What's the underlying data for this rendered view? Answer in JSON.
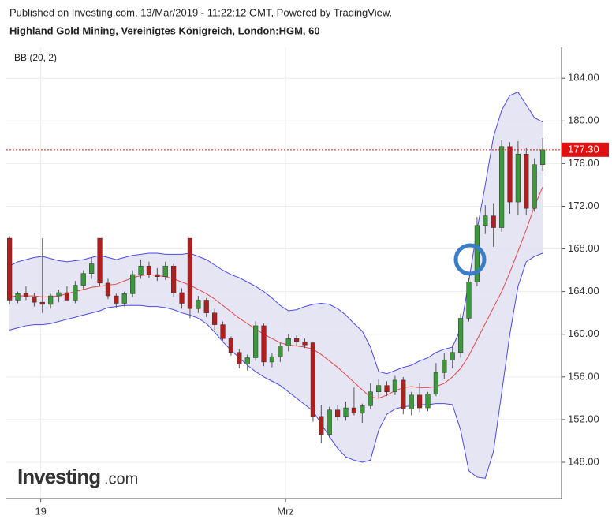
{
  "chart_data": {
    "type": "candlestick",
    "header": "Published on Investing.com, 13/Mar/2019 - 11:22:12 GMT, Powered by TradingView.",
    "title": "Highland Gold Mining, Vereinigtes Königreich, London:HGM, 60",
    "indicator_label": "BB (20, 2)",
    "logo": "Investing",
    "logo_suffix": ".com",
    "categories": [
      null,
      null,
      null,
      null,
      null,
      null,
      null,
      null,
      null,
      null,
      null,
      null,
      null,
      null,
      null,
      null,
      null,
      null,
      null,
      null,
      null,
      null,
      null,
      null,
      null,
      null,
      null,
      null,
      null,
      null,
      null,
      null,
      null,
      null,
      null,
      null,
      null,
      null,
      null,
      null,
      null,
      null,
      null,
      null,
      null,
      null,
      null,
      null,
      null,
      null,
      null,
      null,
      null,
      null,
      null,
      null,
      null,
      null,
      null,
      null,
      null,
      null,
      null,
      null,
      null,
      null
    ],
    "open": [
      169,
      163.2,
      163.8,
      163.5,
      163,
      162.8,
      163.6,
      163.9,
      163.2,
      164.6,
      165.7,
      169,
      164.8,
      163.6,
      162.9,
      163.8,
      165.6,
      166.4,
      165.6,
      165.4,
      166.4,
      163.9,
      169,
      162.4,
      163.2,
      162,
      160.9,
      159.6,
      158.3,
      157.2,
      157.8,
      160.8,
      157.4,
      157.9,
      158.9,
      159.6,
      159.3,
      159.2,
      152.3,
      150.6,
      152.9,
      152.3,
      153.1,
      152.6,
      153.3,
      154.6,
      155.2,
      154.6,
      155.7,
      153,
      154.3,
      153.1,
      154.4,
      156.4,
      157.6,
      158.3,
      161.5,
      164.9,
      170.2,
      171.1,
      170,
      177.6,
      172.4,
      176.9,
      171.8,
      175.9
    ],
    "high": [
      169.2,
      164,
      164.5,
      163.9,
      169,
      163.8,
      164.2,
      164.5,
      165,
      166,
      167.2,
      169,
      165.2,
      163.8,
      164,
      166,
      167,
      166.8,
      166.2,
      166.8,
      166.6,
      164.3,
      169,
      163.6,
      163.4,
      162.4,
      161.2,
      159.8,
      158.6,
      158.1,
      161.2,
      161,
      158.2,
      159.2,
      160,
      159.9,
      159.6,
      159.3,
      153.4,
      153.2,
      153.4,
      153.7,
      155,
      153.5,
      155.4,
      155.8,
      155.6,
      156.1,
      156,
      154.6,
      155.4,
      154.6,
      157.3,
      158.2,
      159,
      161.9,
      165.3,
      171,
      172.1,
      172.3,
      178.2,
      178,
      178.1,
      177.5,
      176.5,
      178.4
    ],
    "low": [
      162.8,
      162.9,
      163.2,
      162.6,
      162,
      162.4,
      163,
      163.4,
      162.9,
      164.2,
      165.2,
      164.5,
      163.3,
      162.5,
      162.6,
      163.5,
      165.2,
      165.3,
      165,
      165.1,
      163.5,
      162.4,
      161.5,
      162,
      161.6,
      160.4,
      159.4,
      158,
      156.8,
      156.6,
      157.5,
      157,
      156.9,
      157.4,
      158.4,
      158.9,
      158.7,
      151.8,
      149.8,
      150.3,
      151.9,
      151.9,
      152.4,
      151.7,
      153,
      154,
      154.2,
      154.3,
      152.5,
      152.4,
      152.7,
      152.8,
      154.2,
      155.8,
      156.8,
      157.8,
      161.2,
      164.5,
      169.4,
      168.2,
      169.6,
      171.3,
      171.2,
      171.2,
      171.5,
      175.3
    ],
    "close": [
      163.2,
      163.8,
      163.5,
      163,
      162.8,
      163.6,
      163.9,
      163.2,
      164.6,
      165.7,
      166.6,
      164.8,
      163.6,
      162.9,
      163.8,
      165.6,
      166.4,
      165.6,
      165.4,
      166.4,
      163.9,
      162.9,
      162.4,
      163.2,
      162,
      160.9,
      159.6,
      158.3,
      157.2,
      157.8,
      160.8,
      157.4,
      157.9,
      158.9,
      159.6,
      159.3,
      159,
      152.3,
      150.6,
      152.9,
      152.3,
      153.1,
      152.6,
      153.3,
      154.6,
      155.2,
      154.6,
      155.7,
      153,
      154.3,
      153.1,
      154.4,
      156.4,
      157.6,
      158.3,
      161.5,
      164.9,
      170.2,
      171.1,
      170,
      177.6,
      172.4,
      176.9,
      171.8,
      175.9,
      177.3
    ],
    "up_color": "#3a9a3a",
    "down_color": "#b01e1e",
    "wick_color": "#555555",
    "band_fill": "#e1e1f2",
    "series": [
      {
        "color": "#4a4ae8",
        "values": [
          166.4,
          166.8,
          167,
          167.2,
          167.3,
          167.1,
          166.9,
          166.8,
          166.9,
          167,
          167.2,
          167.4,
          167.2,
          167,
          167.2,
          167.4,
          167.5,
          167.6,
          167.6,
          167.5,
          167.5,
          167.5,
          167.6,
          167.3,
          167,
          166.5,
          166,
          165.6,
          165.3,
          164.9,
          164.5,
          164,
          163.4,
          162.7,
          162.2,
          162.3,
          162.6,
          162.8,
          162.9,
          162.8,
          162.4,
          161.8,
          161,
          160.3,
          158.8,
          156.5,
          156.3,
          156.6,
          156.9,
          157.1,
          157.5,
          157.8,
          158.3,
          158.6,
          158.8,
          160.5,
          165,
          169.8,
          174,
          178.5,
          181,
          182.4,
          182.7,
          181.5,
          180.3,
          179.9
        ]
      },
      {
        "color": "#e8474a",
        "values": [
          163.5,
          163.6,
          163.6,
          163.6,
          163.5,
          163.5,
          163.6,
          163.8,
          164,
          164.2,
          164.4,
          164.5,
          164.6,
          164.7,
          165,
          165.3,
          165.5,
          165.6,
          165.5,
          165.4,
          165.2,
          164.9,
          164.6,
          164.2,
          163.8,
          163.3,
          162.7,
          162.1,
          161.5,
          161,
          160.5,
          160,
          159.6,
          159.2,
          159,
          158.9,
          158.8,
          158.6,
          158.1,
          157.5,
          156.9,
          156.2,
          155.5,
          154.8,
          154.1,
          154,
          154.3,
          154.7,
          155,
          155.1,
          155,
          155,
          155.1,
          155.4,
          156,
          156.8,
          158,
          159.5,
          161,
          162.5,
          164,
          165.8,
          167.8,
          169.8,
          172,
          173.8
        ]
      },
      {
        "color": "#4a4ae8",
        "values": [
          160.4,
          160.6,
          160.8,
          160.9,
          160.9,
          161,
          161.2,
          161.4,
          161.6,
          161.8,
          162,
          162.2,
          162.5,
          162.6,
          162.7,
          162.7,
          162.7,
          162.6,
          162.6,
          162.5,
          162.3,
          162,
          161.8,
          161.5,
          161,
          160.2,
          159.3,
          158.5,
          157.8,
          157.1,
          156.5,
          156,
          155.6,
          155.2,
          154.6,
          154,
          153.4,
          152.8,
          151.6,
          150.4,
          149.3,
          148.5,
          148.2,
          148,
          148.2,
          151,
          152.5,
          153,
          153.2,
          153.3,
          153.4,
          153.4,
          153.5,
          153.5,
          153.4,
          151,
          147.2,
          146.6,
          146.5,
          149,
          154.5,
          160,
          164.5,
          166.8,
          167.3,
          167.6
        ]
      }
    ],
    "last_price": {
      "value": 177.3,
      "label": "177.30",
      "color": "#e01010"
    },
    "xlim": [
      -0.4,
      67.3
    ],
    "xticks": [
      {
        "value": 3.8,
        "label": "19"
      },
      {
        "value": 33.65,
        "label": "Mrz"
      }
    ],
    "ylim": [
      144.6,
      186.9
    ],
    "yticks": [
      {
        "value": 148,
        "label": "148.00"
      },
      {
        "value": 152,
        "label": "152.00"
      },
      {
        "value": 156,
        "label": "156.00"
      },
      {
        "value": 160,
        "label": "160.00"
      },
      {
        "value": 164,
        "label": "164.00"
      },
      {
        "value": 168,
        "label": "168.00"
      },
      {
        "value": 172,
        "label": "172.00"
      },
      {
        "value": 176,
        "label": "176.00"
      },
      {
        "value": 180,
        "label": "180.00"
      },
      {
        "value": 184,
        "label": "184.00"
      }
    ],
    "grid": true
  }
}
